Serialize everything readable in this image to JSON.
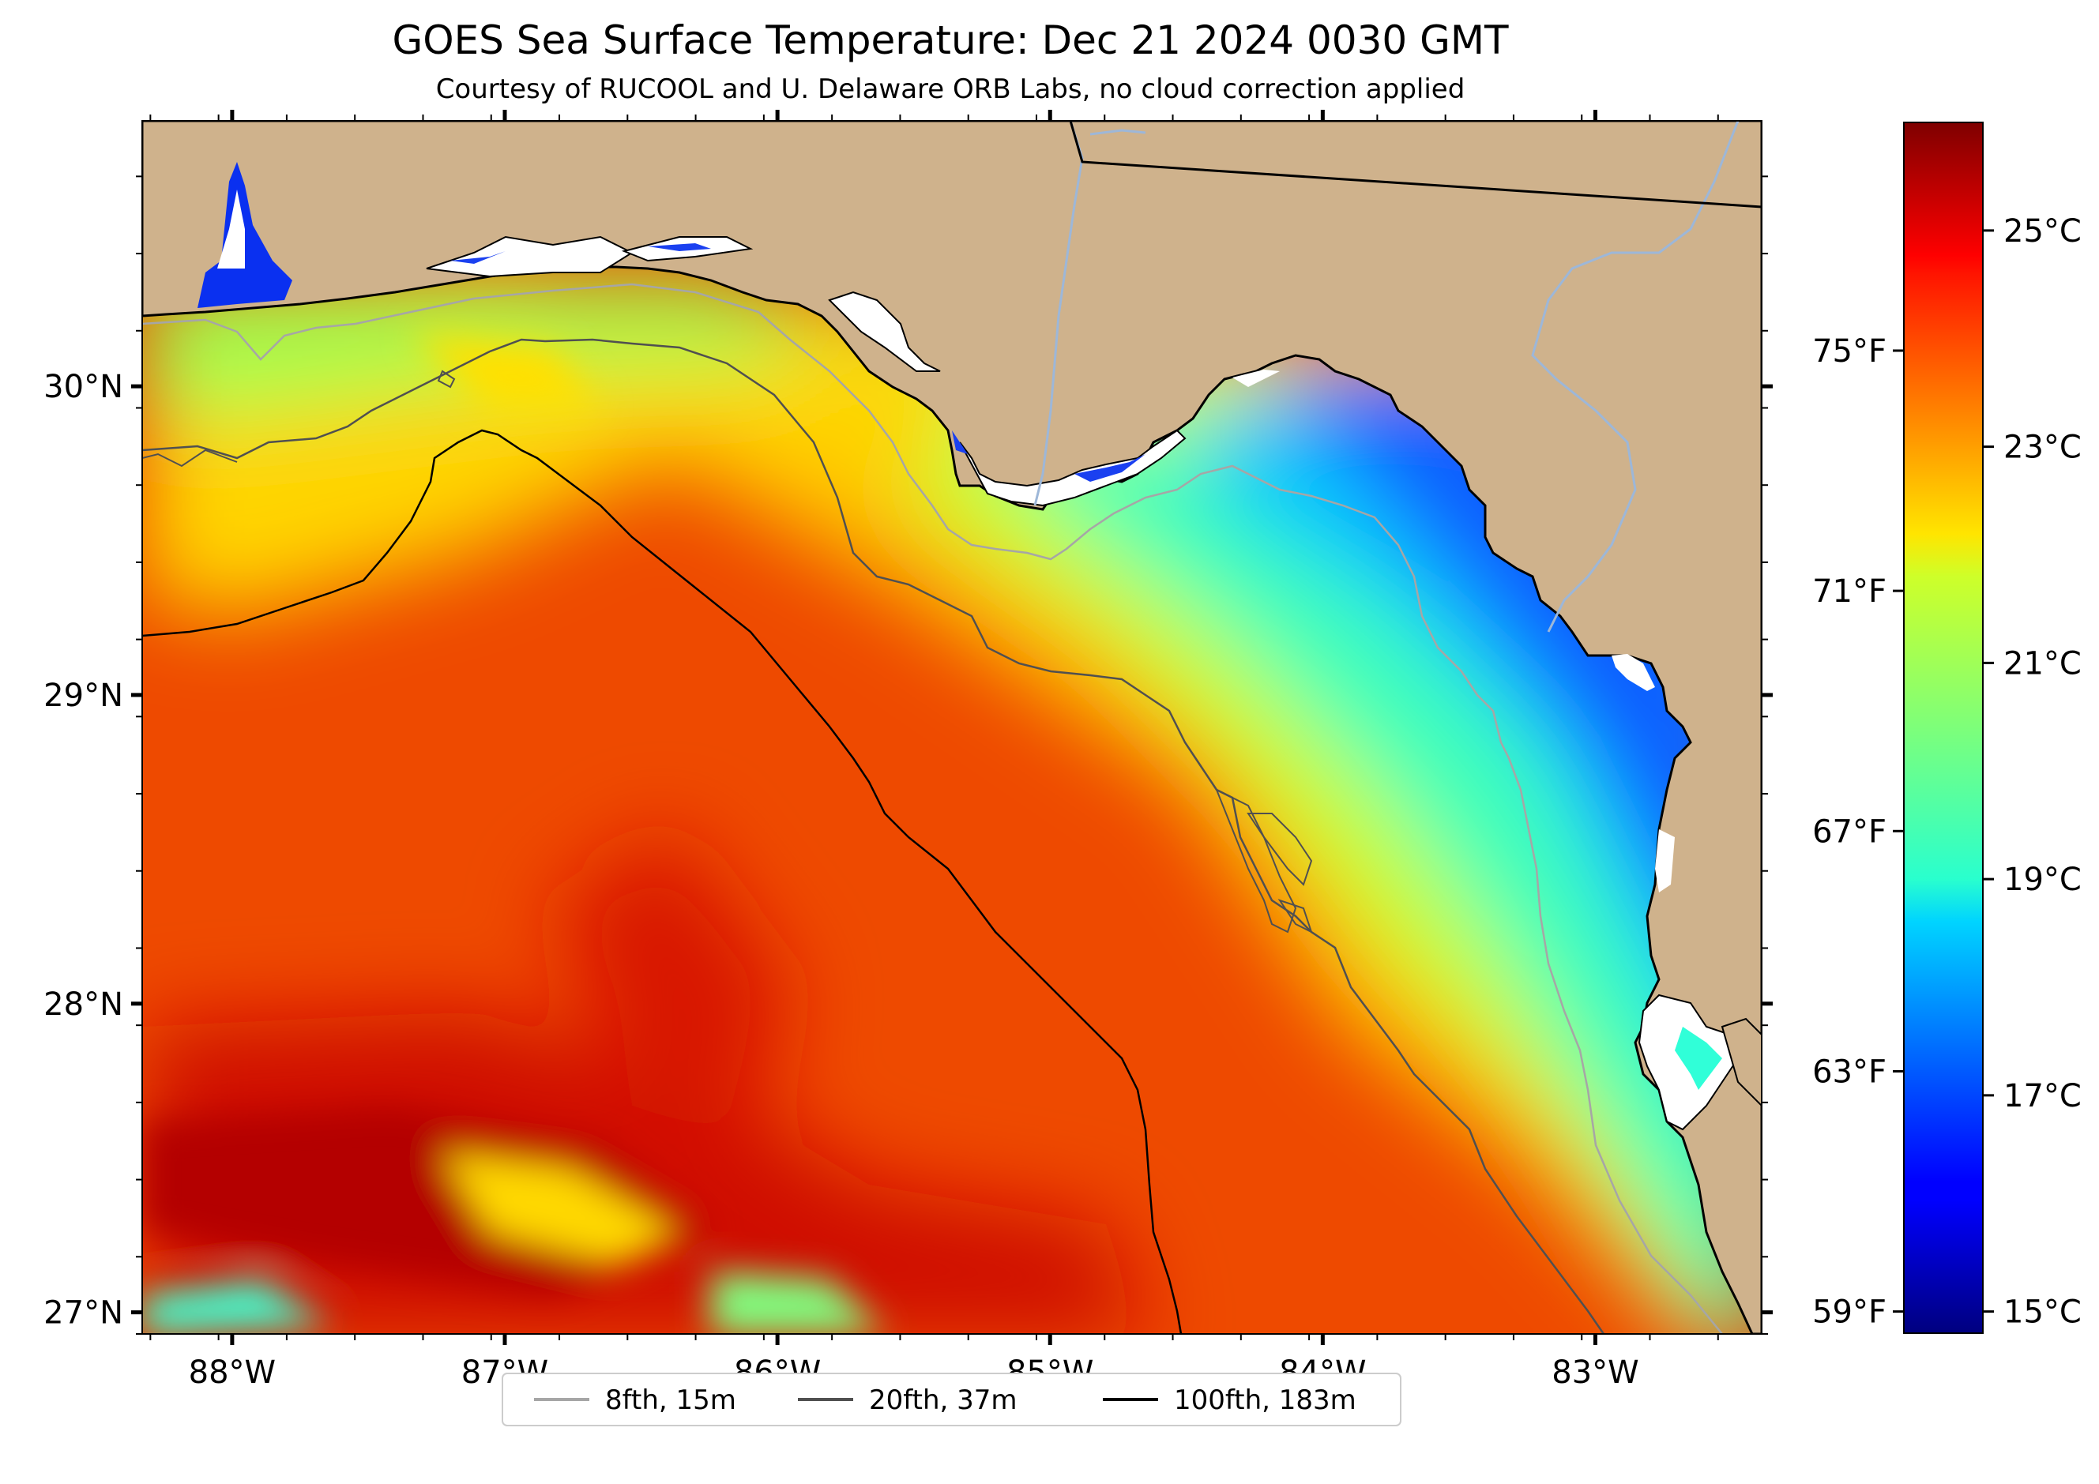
{
  "title": "GOES Sea Surface Temperature: Dec 21 2024 0030 GMT",
  "subtitle": "Courtesy of RUCOOL and U. Delaware ORB Labs, no cloud correction applied",
  "map": {
    "lon_range": [
      -88.33,
      -82.39
    ],
    "lat_range": [
      26.93,
      30.86
    ],
    "lon_ticks": [
      {
        "value": -88,
        "label": "88°W"
      },
      {
        "value": -87,
        "label": "87°W"
      },
      {
        "value": -86,
        "label": "86°W"
      },
      {
        "value": -85,
        "label": "85°W"
      },
      {
        "value": -84,
        "label": "84°W"
      },
      {
        "value": -83,
        "label": "83°W"
      }
    ],
    "lat_ticks": [
      {
        "value": 30,
        "label": "30°N"
      },
      {
        "value": 29,
        "label": "29°N"
      },
      {
        "value": 28,
        "label": "28°N"
      },
      {
        "value": 27,
        "label": "27°N"
      }
    ],
    "land_color": "#cfb28c",
    "colormap": "jet"
  },
  "colorbar": {
    "celsius_range": [
      14.8,
      26.0
    ],
    "celsius_ticks": [
      {
        "value": 15,
        "label": "15°C"
      },
      {
        "value": 17,
        "label": "17°C"
      },
      {
        "value": 19,
        "label": "19°C"
      },
      {
        "value": 21,
        "label": "21°C"
      },
      {
        "value": 23,
        "label": "23°C"
      },
      {
        "value": 25,
        "label": "25°C"
      }
    ],
    "fahrenheit_ticks": [
      {
        "value": 59,
        "label": "59°F"
      },
      {
        "value": 63,
        "label": "63°F"
      },
      {
        "value": 67,
        "label": "67°F"
      },
      {
        "value": 71,
        "label": "71°F"
      },
      {
        "value": 75,
        "label": "75°F"
      }
    ]
  },
  "legend": [
    {
      "label": "8fth, 15m",
      "color": "#a6a6a6"
    },
    {
      "label": "20fth, 37m",
      "color": "#505050"
    },
    {
      "label": "100fth, 183m",
      "color": "#000000"
    }
  ]
}
